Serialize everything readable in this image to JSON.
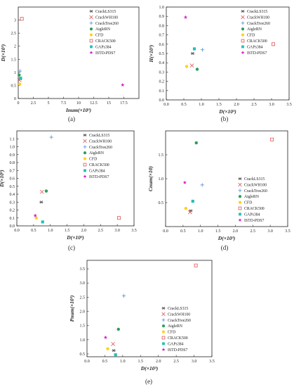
{
  "legend_entries": [
    "CrackLS315",
    "CrackWH100",
    "CrackTree260",
    "AigleRN",
    "CFD",
    "CRACK500",
    "GAPs384",
    "ISTD-PDS7"
  ],
  "series_styles": {
    "CrackLS315": {
      "marker": "asterisk",
      "color": "#555555"
    },
    "CrackWH100": {
      "marker": "x",
      "color": "#e05555"
    },
    "CrackTree260": {
      "marker": "plus",
      "color": "#4a8fe0"
    },
    "AigleRN": {
      "marker": "circle",
      "color": "#2e9e5b"
    },
    "CFD": {
      "marker": "dot",
      "color": "#ffd21a"
    },
    "CRACK500": {
      "marker": "square-open",
      "color": "#e05555"
    },
    "GAPs384": {
      "marker": "square",
      "color": "#22c0b8"
    },
    "ISTD-PDS7": {
      "marker": "star",
      "color": "#d020c8"
    }
  },
  "chart_data": [
    {
      "type": "scatter",
      "caption": "(a)",
      "xlabel": "Inum(×10³)",
      "ylabel": "D(×10³)",
      "xlim": [
        0,
        20
      ],
      "ylim": [
        0,
        3.5
      ],
      "xticks": [
        "0",
        "2.5",
        "5",
        "7.5",
        "10",
        "12.5",
        "15",
        "17.5"
      ],
      "xtick_values": [
        0,
        2.5,
        5,
        7.5,
        10,
        12.5,
        15,
        17.5
      ],
      "yticks": [
        "0",
        "0.5",
        "1",
        "1.5",
        "2",
        "2.5",
        "3"
      ],
      "ytick_values": [
        0,
        0.5,
        1,
        1.5,
        2,
        2.5,
        3
      ],
      "legend": "top-right",
      "points": [
        {
          "series": "CrackLS315",
          "x": 0.35,
          "y": 0.75
        },
        {
          "series": "CrackWH100",
          "x": 0.2,
          "y": 0.7
        },
        {
          "series": "CrackTree260",
          "x": 0.3,
          "y": 1.05
        },
        {
          "series": "AigleRN",
          "x": 0.15,
          "y": 0.9
        },
        {
          "series": "CFD",
          "x": 0.25,
          "y": 0.55
        },
        {
          "series": "CRACK500",
          "x": 0.6,
          "y": 3.05
        },
        {
          "series": "GAPs384",
          "x": 0.4,
          "y": 0.78
        },
        {
          "series": "ISTD-PDS7",
          "x": 17.3,
          "y": 0.52
        }
      ]
    },
    {
      "type": "scatter",
      "caption": "(b)",
      "xlabel": "D(×10³)",
      "ylabel": "H(×10³)",
      "xlim": [
        0,
        3.5
      ],
      "ylim": [
        0,
        1.0
      ],
      "xticks": [
        "0.0",
        "0.5",
        "1.0",
        "1.5",
        "2.0",
        "2.5",
        "3.0",
        "3.5"
      ],
      "xtick_values": [
        0,
        0.5,
        1,
        1.5,
        2,
        2.5,
        3,
        3.5
      ],
      "yticks": [
        "0.0",
        "0.1",
        "0.2",
        "0.3",
        "0.4",
        "0.5",
        "0.6",
        "0.7",
        "0.8",
        "0.9",
        "1.0"
      ],
      "ytick_values": [
        0,
        0.1,
        0.2,
        0.3,
        0.4,
        0.5,
        0.6,
        0.7,
        0.8,
        0.9,
        1.0
      ],
      "legend": "top-right",
      "points": [
        {
          "series": "CrackLS315",
          "x": 0.75,
          "y": 0.5
        },
        {
          "series": "CrackWH100",
          "x": 0.73,
          "y": 0.37
        },
        {
          "series": "CrackTree260",
          "x": 1.03,
          "y": 0.54
        },
        {
          "series": "AigleRN",
          "x": 0.88,
          "y": 0.33
        },
        {
          "series": "CFD",
          "x": 0.58,
          "y": 0.36
        },
        {
          "series": "CRACK500",
          "x": 3.05,
          "y": 0.6
        },
        {
          "series": "GAPs384",
          "x": 0.8,
          "y": 0.55
        },
        {
          "series": "ISTD-PDS7",
          "x": 0.55,
          "y": 0.89
        }
      ]
    },
    {
      "type": "scatter",
      "caption": "(c)",
      "xlabel": "D(×10³)",
      "ylabel": "D(×10³)",
      "xlim": [
        0,
        3.5
      ],
      "ylim": [
        0,
        1.2
      ],
      "xticks": [
        "0.0",
        "0.5",
        "1.0",
        "1.5",
        "2.0",
        "2.5",
        "3.0",
        "3.5"
      ],
      "xtick_values": [
        0,
        0.5,
        1,
        1.5,
        2,
        2.5,
        3,
        3.5
      ],
      "yticks": [
        "0.0",
        "0.1",
        "0.2",
        "0.3",
        "0.4",
        "0.5",
        "0.6",
        "0.7",
        "0.8",
        "0.9",
        "1.0",
        "1.1"
      ],
      "ytick_values": [
        0,
        0.1,
        0.2,
        0.3,
        0.4,
        0.5,
        0.6,
        0.7,
        0.8,
        0.9,
        1.0,
        1.1
      ],
      "legend": "top-right",
      "points": [
        {
          "series": "CrackLS315",
          "x": 0.73,
          "y": 0.3
        },
        {
          "series": "CrackWH100",
          "x": 0.75,
          "y": 0.43
        },
        {
          "series": "CrackTree260",
          "x": 1.03,
          "y": 1.12
        },
        {
          "series": "AigleRN",
          "x": 0.88,
          "y": 0.44
        },
        {
          "series": "CFD",
          "x": 0.58,
          "y": 0.1
        },
        {
          "series": "CRACK500",
          "x": 3.05,
          "y": 0.1
        },
        {
          "series": "GAPs384",
          "x": 0.77,
          "y": 0.05
        },
        {
          "series": "ISTD-PDS7",
          "x": 0.55,
          "y": 0.13
        }
      ]
    },
    {
      "type": "scatter",
      "caption": "(d)",
      "xlabel": "D(×10³)",
      "ylabel": "Cnum(×10)",
      "xlim": [
        0,
        3.5
      ],
      "ylim": [
        0,
        2.0
      ],
      "xticks": [
        "0.0",
        "0.5",
        "1.0",
        "1.5",
        "2.0",
        "2.5",
        "3.0",
        "3.5"
      ],
      "xtick_values": [
        0,
        0.5,
        1,
        1.5,
        2,
        2.5,
        3,
        3.5
      ],
      "yticks": [
        "0.5",
        "1.0",
        "1.5"
      ],
      "ytick_values": [
        0.5,
        1.0,
        1.5
      ],
      "legend": "middle-right",
      "points": [
        {
          "series": "CrackLS315",
          "x": 0.72,
          "y": 0.33
        },
        {
          "series": "CrackWH100",
          "x": 0.7,
          "y": 0.3
        },
        {
          "series": "CrackTree260",
          "x": 1.05,
          "y": 0.87
        },
        {
          "series": "AigleRN",
          "x": 0.88,
          "y": 1.75
        },
        {
          "series": "CFD",
          "x": 0.58,
          "y": 0.38
        },
        {
          "series": "CRACK500",
          "x": 3.05,
          "y": 1.82
        },
        {
          "series": "GAPs384",
          "x": 0.78,
          "y": 0.53
        },
        {
          "series": "ISTD-PDS7",
          "x": 0.55,
          "y": 0.92
        }
      ]
    },
    {
      "type": "scatter",
      "caption": "(e)",
      "xlabel": "D(×10³)",
      "ylabel": "Pnum(×10³)",
      "xlim": [
        0,
        3.5
      ],
      "ylim": [
        0.4,
        3.8
      ],
      "xticks": [
        "0.0",
        "0.5",
        "1.0",
        "1.5",
        "2.0",
        "2.5",
        "3.0",
        "3.5"
      ],
      "xtick_values": [
        0,
        0.5,
        1,
        1.5,
        2,
        2.5,
        3,
        3.5
      ],
      "yticks": [
        "0.5",
        "1.0",
        "1.5",
        "2.0",
        "2.5",
        "3.0",
        "3.5"
      ],
      "ytick_values": [
        0.5,
        1.0,
        1.5,
        2.0,
        2.5,
        3.0,
        3.5
      ],
      "legend": "middle-right",
      "points": [
        {
          "series": "CrackLS315",
          "x": 0.75,
          "y": 0.62
        },
        {
          "series": "CrackWH100",
          "x": 0.73,
          "y": 0.85
        },
        {
          "series": "CrackTree260",
          "x": 1.03,
          "y": 2.55
        },
        {
          "series": "AigleRN",
          "x": 0.88,
          "y": 1.37
        },
        {
          "series": "CFD",
          "x": 0.58,
          "y": 0.68
        },
        {
          "series": "CRACK500",
          "x": 3.05,
          "y": 3.62
        },
        {
          "series": "GAPs384",
          "x": 0.8,
          "y": 0.47
        },
        {
          "series": "ISTD-PDS7",
          "x": 0.52,
          "y": 1.08
        }
      ]
    }
  ]
}
